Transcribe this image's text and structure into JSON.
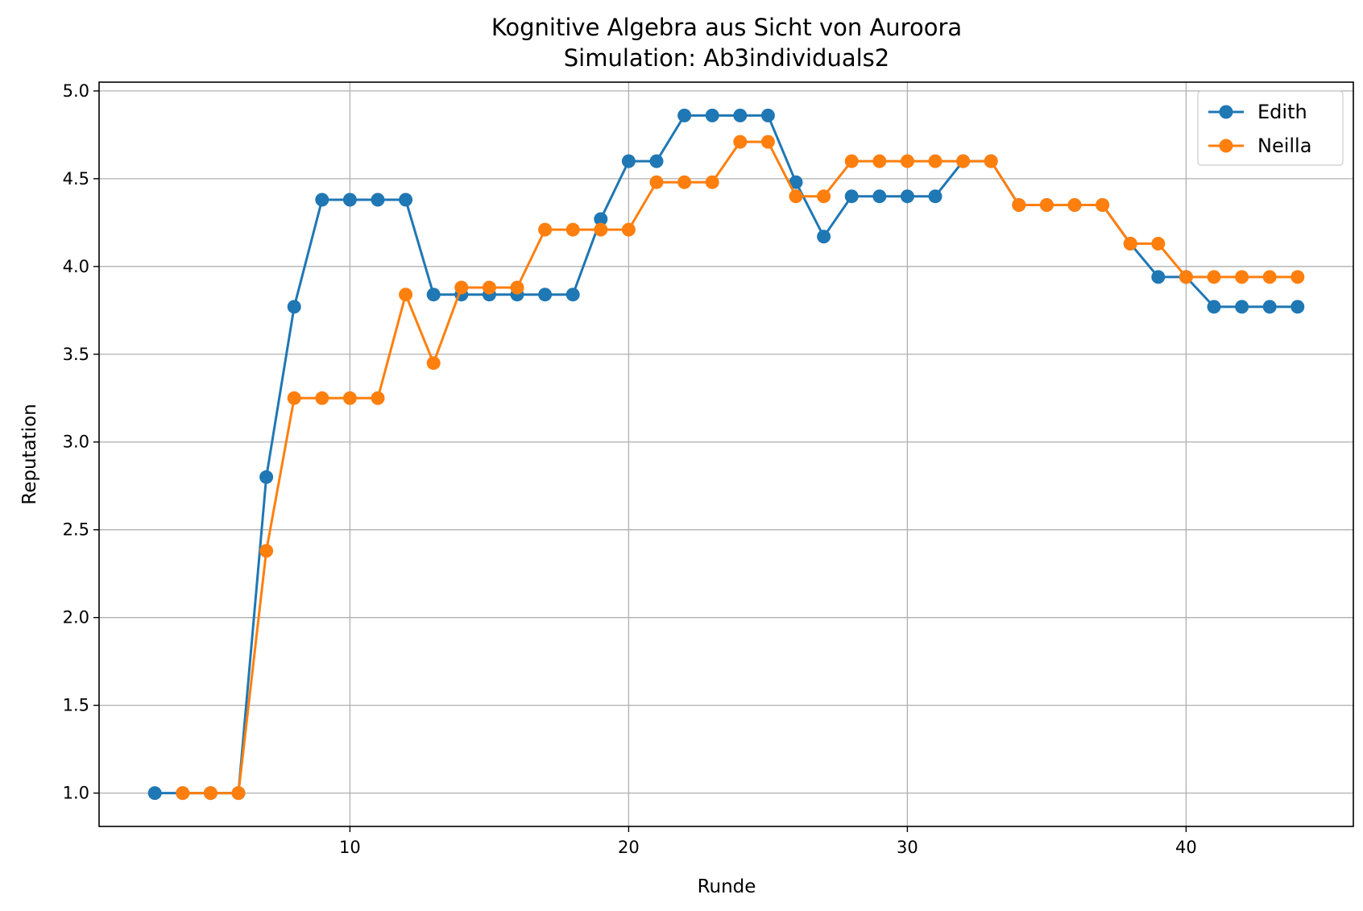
{
  "chart_data": {
    "type": "line",
    "title": "Kognitive Algebra aus Sicht von Auroora",
    "subtitle": "Simulation: Ab3individuals2",
    "xlabel": "Runde",
    "ylabel": "Reputation",
    "xlim": [
      1,
      46
    ],
    "ylim": [
      0.81,
      5.05
    ],
    "xticks": [
      10,
      20,
      30,
      40
    ],
    "yticks": [
      1.0,
      1.5,
      2.0,
      2.5,
      3.0,
      3.5,
      4.0,
      4.5,
      5.0
    ],
    "xtick_labels": [
      "10",
      "20",
      "30",
      "40"
    ],
    "ytick_labels": [
      "1.0",
      "1.5",
      "2.0",
      "2.5",
      "3.0",
      "3.5",
      "4.0",
      "4.5",
      "5.0"
    ],
    "grid": true,
    "legend_position": "top-right",
    "series": [
      {
        "name": "Edith",
        "color": "#1f77b4",
        "marker": "circle",
        "x": [
          3,
          4,
          5,
          6,
          7,
          8,
          9,
          10,
          11,
          12,
          13,
          14,
          15,
          16,
          17,
          18,
          19,
          20,
          21,
          22,
          23,
          24,
          25,
          26,
          27,
          28,
          29,
          30,
          31,
          32,
          33,
          34,
          35,
          36,
          37,
          38,
          39,
          40,
          41,
          42,
          43,
          44
        ],
        "values": [
          1.0,
          1.0,
          1.0,
          1.0,
          2.8,
          3.77,
          4.38,
          4.38,
          4.38,
          4.38,
          3.84,
          3.84,
          3.84,
          3.84,
          3.84,
          3.84,
          4.27,
          4.6,
          4.6,
          4.86,
          4.86,
          4.86,
          4.86,
          4.48,
          4.17,
          4.4,
          4.4,
          4.4,
          4.4,
          4.6,
          4.6,
          4.35,
          4.35,
          4.35,
          4.35,
          4.13,
          3.94,
          3.94,
          3.77,
          3.77,
          3.77,
          3.77
        ]
      },
      {
        "name": "Neilla",
        "color": "#ff7f0e",
        "marker": "circle",
        "x": [
          4,
          5,
          6,
          7,
          8,
          9,
          10,
          11,
          12,
          13,
          14,
          15,
          16,
          17,
          18,
          19,
          20,
          21,
          22,
          23,
          24,
          25,
          26,
          27,
          28,
          29,
          30,
          31,
          32,
          33,
          34,
          35,
          36,
          37,
          38,
          39,
          40,
          41,
          42,
          43,
          44
        ],
        "values": [
          1.0,
          1.0,
          1.0,
          2.38,
          3.25,
          3.25,
          3.25,
          3.25,
          3.84,
          3.45,
          3.88,
          3.88,
          3.88,
          4.21,
          4.21,
          4.21,
          4.21,
          4.48,
          4.48,
          4.48,
          4.71,
          4.71,
          4.4,
          4.4,
          4.6,
          4.6,
          4.6,
          4.6,
          4.6,
          4.6,
          4.35,
          4.35,
          4.35,
          4.35,
          4.13,
          4.13,
          3.94,
          3.94,
          3.94,
          3.94,
          3.94
        ]
      }
    ]
  }
}
